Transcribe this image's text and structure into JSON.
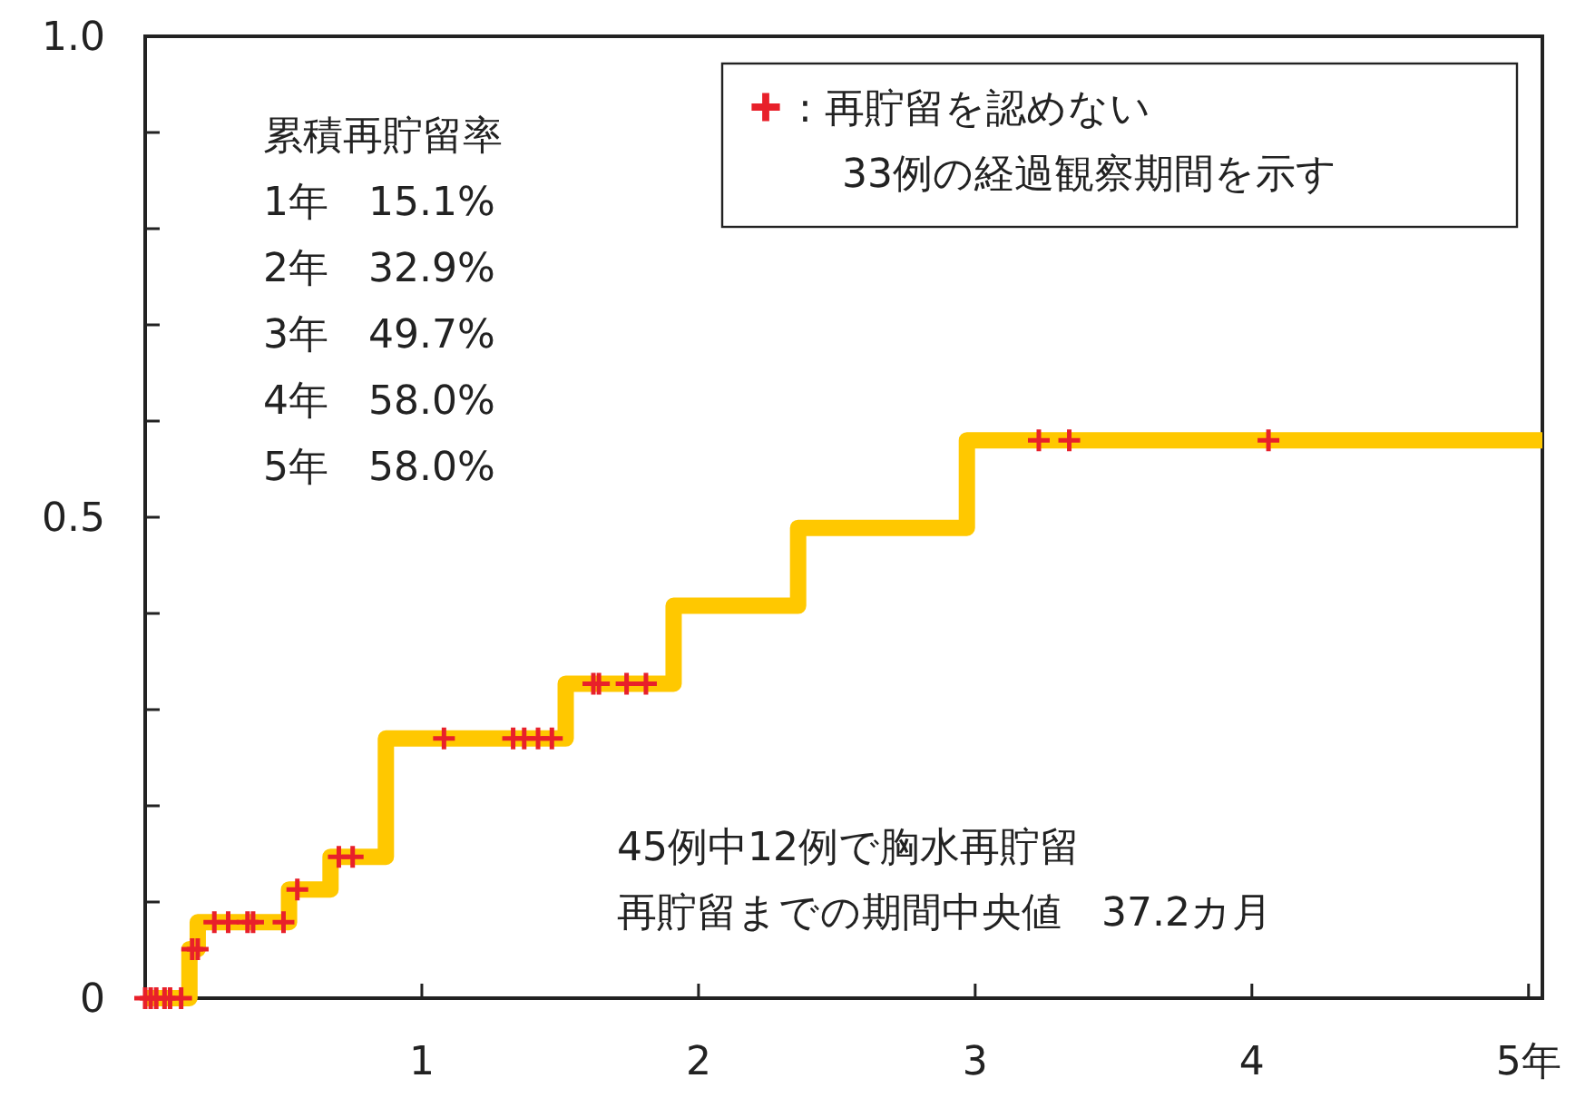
{
  "chart_data": {
    "type": "step",
    "xlim": [
      0,
      5.05
    ],
    "ylim": [
      0,
      1
    ],
    "xticks": [
      1,
      2,
      3,
      4,
      {
        "value": 5,
        "label": "5年"
      }
    ],
    "yticks": [
      {
        "value": 0,
        "label": "0"
      },
      {
        "value": 0.1,
        "label": null
      },
      {
        "value": 0.2,
        "label": null
      },
      {
        "value": 0.3,
        "label": null
      },
      {
        "value": 0.4,
        "label": null
      },
      {
        "value": 0.5,
        "label": "0.5"
      },
      {
        "value": 0.6,
        "label": null
      },
      {
        "value": 0.7,
        "label": null
      },
      {
        "value": 0.8,
        "label": null
      },
      {
        "value": 0.9,
        "label": null
      },
      {
        "value": 1,
        "label": "1.0"
      }
    ],
    "grid": false,
    "legend": "top right",
    "series": [
      {
        "color": "#ffc800",
        "x": [
          0,
          0.16,
          0.19,
          0.52,
          0.67,
          0.87,
          1.52,
          1.91,
          2.36,
          2.97,
          5.05
        ],
        "values": [
          0,
          0.051,
          0.079,
          0.113,
          0.147,
          0.27,
          0.327,
          0.408,
          0.489,
          0.58,
          0.58
        ]
      },
      {
        "type": "scatter",
        "marker": "cross",
        "name": ": 再貯留を認めない\n33例の経過観察期間を示す",
        "color": "#e8202a",
        "x": [
          0,
          0.02,
          0.04,
          0.07,
          0.09,
          0.13,
          0.17,
          0.19,
          0.25,
          0.3,
          0.37,
          0.39,
          0.5,
          0.55,
          0.7,
          0.75,
          1.08,
          1.33,
          1.37,
          1.42,
          1.47,
          1.62,
          1.64,
          1.74,
          1.81,
          3.23,
          3.34,
          4.06
        ],
        "values": [
          0,
          0,
          0,
          0,
          0,
          0,
          0.051,
          0.051,
          0.079,
          0.079,
          0.079,
          0.079,
          0.079,
          0.113,
          0.147,
          0.147,
          0.27,
          0.27,
          0.27,
          0.27,
          0.27,
          0.327,
          0.327,
          0.327,
          0.327,
          0.58,
          0.58,
          0.58
        ]
      }
    ],
    "annotations": [
      "累積再貯留率",
      "1年　15.1%",
      "2年　32.9%",
      "3年　49.7%",
      "4年　58.0%",
      "5年　58.0%",
      "45例中12例で胸水再貯留",
      "再貯留までの期間中央値　37.2カ月"
    ]
  }
}
